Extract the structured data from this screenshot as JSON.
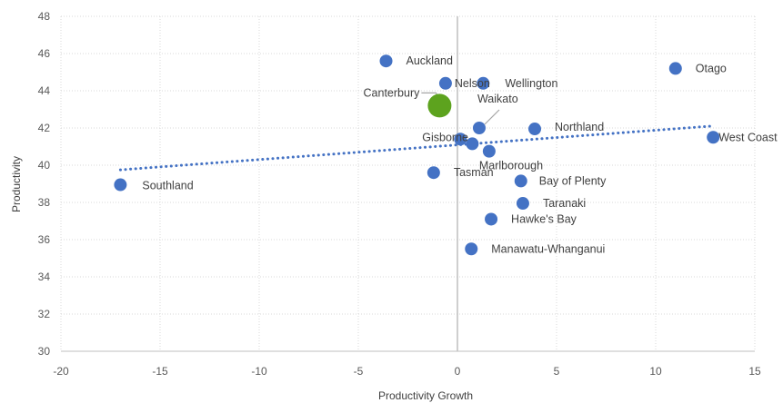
{
  "chart_data": {
    "type": "scatter",
    "title": "",
    "xlabel": "Productivity Growth",
    "ylabel": "Productivity",
    "xlim": [
      -20,
      15
    ],
    "ylim": [
      30,
      48
    ],
    "xticks": [
      -20,
      -15,
      -10,
      -5,
      0,
      5,
      10,
      15
    ],
    "yticks": [
      30,
      32,
      34,
      36,
      38,
      40,
      42,
      44,
      46,
      48
    ],
    "xtick_labels": [
      "-20",
      "-15",
      "-10",
      "-5",
      "0",
      "5",
      "10",
      "15"
    ],
    "ytick_labels": [
      "30",
      "32",
      "34",
      "36",
      "38",
      "40",
      "42",
      "44",
      "46",
      "48"
    ],
    "grid": true,
    "legend": "none",
    "point_color": "#4472C4",
    "highlight_color": "#5DA31E",
    "trendline_color": "#4472C4",
    "trendline": {
      "x": [
        -17,
        12.8
      ],
      "y": [
        39.75,
        42.1
      ]
    },
    "points": [
      {
        "name": "Auckland",
        "x": -3.6,
        "y": 45.6
      },
      {
        "name": "Nelson",
        "x": -0.6,
        "y": 44.4
      },
      {
        "name": "Wellington",
        "x": 1.3,
        "y": 44.4
      },
      {
        "name": "Otago",
        "x": 11.0,
        "y": 45.2
      },
      {
        "name": "Canterbury",
        "x": -0.9,
        "y": 43.2,
        "highlight": true
      },
      {
        "name": "Waikato",
        "x": 1.1,
        "y": 42.0
      },
      {
        "name": "Northland",
        "x": 3.9,
        "y": 41.95
      },
      {
        "name": "West Coast",
        "x": 12.9,
        "y": 41.5
      },
      {
        "name": "Gisborne",
        "x": 0.15,
        "y": 41.4
      },
      {
        "name": "",
        "x": 0.75,
        "y": 41.15
      },
      {
        "name": "Marlborough",
        "x": 1.6,
        "y": 40.75
      },
      {
        "name": "Tasman",
        "x": -1.2,
        "y": 39.6
      },
      {
        "name": "Bay of Plenty",
        "x": 3.2,
        "y": 39.15
      },
      {
        "name": "Southland",
        "x": -17.0,
        "y": 38.95
      },
      {
        "name": "Taranaki",
        "x": 3.3,
        "y": 37.95
      },
      {
        "name": "Hawke's Bay",
        "x": 1.7,
        "y": 37.1
      },
      {
        "name": "Manawatu-Whanganui",
        "x": 0.7,
        "y": 35.5
      }
    ]
  }
}
